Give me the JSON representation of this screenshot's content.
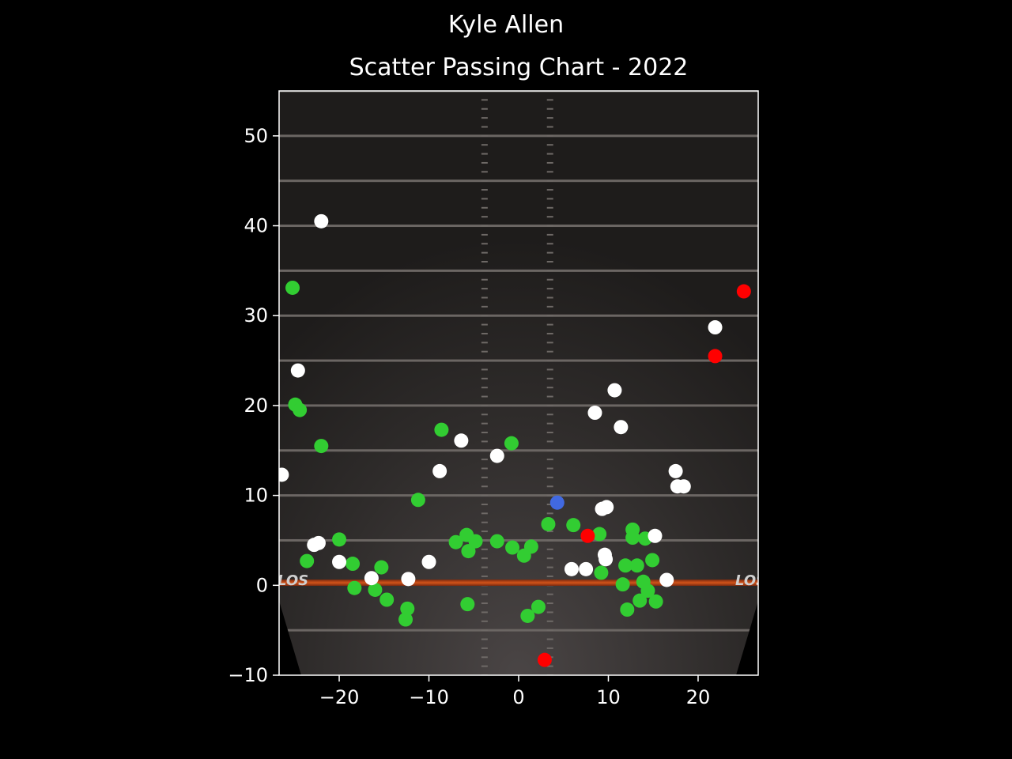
{
  "figure": {
    "suptitle": "Kyle Allen",
    "background": "#000000"
  },
  "chart_data": {
    "type": "scatter",
    "title": "Scatter Passing Chart - 2022",
    "xlabel": "",
    "ylabel": "",
    "xlim": [
      -26.7,
      26.7
    ],
    "ylim": [
      -10,
      55
    ],
    "xticks": [
      "−20",
      "−10",
      "0",
      "10",
      "20"
    ],
    "xtick_values": [
      -20,
      -10,
      0,
      10,
      20
    ],
    "yticks": [
      "−10",
      "0",
      "10",
      "20",
      "30",
      "40",
      "50"
    ],
    "ytick_values": [
      -10,
      0,
      10,
      20,
      30,
      40,
      50
    ],
    "grid": false,
    "background": "football field",
    "field_text": "LOS",
    "series": [
      {
        "color": "#32cd32",
        "points": [
          [
            -25.2,
            33.1
          ],
          [
            -24.9,
            20.1
          ],
          [
            -24.4,
            19.5
          ],
          [
            -22.0,
            15.5
          ],
          [
            -23.6,
            2.7
          ],
          [
            -20.0,
            5.1
          ],
          [
            -18.5,
            2.4
          ],
          [
            -18.3,
            -0.3
          ],
          [
            -16.0,
            -0.5
          ],
          [
            -15.3,
            2.0
          ],
          [
            -14.7,
            -1.6
          ],
          [
            -12.4,
            -2.6
          ],
          [
            -12.6,
            -3.8
          ],
          [
            -11.2,
            9.5
          ],
          [
            -8.6,
            17.3
          ],
          [
            -7.0,
            4.8
          ],
          [
            -5.8,
            5.6
          ],
          [
            -5.6,
            3.8
          ],
          [
            -4.8,
            4.9
          ],
          [
            -5.7,
            -2.1
          ],
          [
            -2.4,
            4.9
          ],
          [
            -0.8,
            15.8
          ],
          [
            -0.7,
            4.2
          ],
          [
            0.6,
            3.3
          ],
          [
            1.4,
            4.3
          ],
          [
            1.0,
            -3.4
          ],
          [
            2.2,
            -2.4
          ],
          [
            3.3,
            6.8
          ],
          [
            6.1,
            6.7
          ],
          [
            9.0,
            5.7
          ],
          [
            9.2,
            1.4
          ],
          [
            11.6,
            0.1
          ],
          [
            11.9,
            2.2
          ],
          [
            12.1,
            -2.7
          ],
          [
            12.7,
            6.2
          ],
          [
            12.7,
            5.3
          ],
          [
            13.2,
            2.2
          ],
          [
            13.5,
            -1.7
          ],
          [
            13.9,
            0.4
          ],
          [
            14.1,
            5.2
          ],
          [
            14.4,
            -0.6
          ],
          [
            14.9,
            2.8
          ],
          [
            15.3,
            -1.8
          ]
        ]
      },
      {
        "color": "#ffffff",
        "points": [
          [
            -22.0,
            40.5
          ],
          [
            -24.6,
            23.9
          ],
          [
            -26.4,
            12.3
          ],
          [
            -22.8,
            4.5
          ],
          [
            -22.3,
            4.7
          ],
          [
            -20.0,
            2.6
          ],
          [
            -16.4,
            0.8
          ],
          [
            -12.3,
            0.7
          ],
          [
            -10.0,
            2.6
          ],
          [
            -8.8,
            12.7
          ],
          [
            -6.4,
            16.1
          ],
          [
            -2.4,
            14.4
          ],
          [
            5.9,
            1.8
          ],
          [
            7.5,
            1.8
          ],
          [
            8.5,
            19.2
          ],
          [
            9.3,
            8.5
          ],
          [
            9.8,
            8.7
          ],
          [
            9.6,
            3.4
          ],
          [
            9.7,
            2.9
          ],
          [
            10.7,
            21.7
          ],
          [
            11.4,
            17.6
          ],
          [
            15.2,
            5.5
          ],
          [
            16.5,
            0.6
          ],
          [
            17.5,
            12.7
          ],
          [
            17.7,
            11.0
          ],
          [
            18.4,
            11.0
          ],
          [
            21.9,
            28.7
          ]
        ]
      },
      {
        "color": "#ff0000",
        "points": [
          [
            25.1,
            32.7
          ],
          [
            21.9,
            25.5
          ],
          [
            7.7,
            5.5
          ],
          [
            2.9,
            -8.3
          ]
        ]
      },
      {
        "color": "#4169e1",
        "points": [
          [
            4.3,
            9.2
          ]
        ]
      }
    ]
  }
}
